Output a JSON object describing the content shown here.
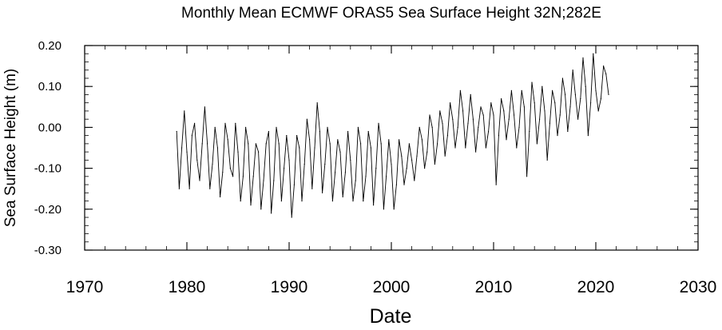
{
  "chart_data": {
    "type": "line",
    "title": "Monthly Mean ECMWF ORAS5   Sea Surface Height 32N;282E",
    "xlabel": "Date",
    "ylabel": "Sea Surface Height (m)",
    "xlim": [
      1970,
      2030
    ],
    "ylim": [
      -0.3,
      0.2
    ],
    "x_ticks": [
      1970,
      1980,
      1990,
      2000,
      2010,
      2020,
      2030
    ],
    "x_tick_labels": [
      "1970",
      "1980",
      "1990",
      "2000",
      "2010",
      "2020",
      "2030"
    ],
    "y_ticks": [
      -0.3,
      -0.2,
      -0.1,
      0.0,
      0.1,
      0.2
    ],
    "y_tick_labels": [
      "-0.30",
      "-0.20",
      "-0.10",
      "0.00",
      "0.10",
      "0.20"
    ],
    "grid": false,
    "line_color": "#000000",
    "series": [
      {
        "x_start": 1979.0,
        "x_step": 0.25,
        "values": [
          -0.01,
          -0.15,
          -0.05,
          0.04,
          -0.06,
          -0.15,
          -0.02,
          0.01,
          -0.08,
          -0.13,
          -0.04,
          0.05,
          -0.04,
          -0.15,
          -0.09,
          0.0,
          -0.05,
          -0.17,
          -0.11,
          0.01,
          -0.03,
          -0.1,
          -0.12,
          0.01,
          -0.06,
          -0.18,
          -0.12,
          0.0,
          -0.04,
          -0.19,
          -0.12,
          -0.04,
          -0.06,
          -0.2,
          -0.13,
          -0.04,
          -0.01,
          -0.21,
          -0.13,
          0.0,
          -0.04,
          -0.18,
          -0.1,
          -0.02,
          -0.08,
          -0.22,
          -0.14,
          -0.02,
          -0.05,
          -0.18,
          -0.09,
          0.02,
          -0.03,
          -0.15,
          -0.05,
          0.06,
          -0.01,
          -0.16,
          -0.09,
          0.0,
          -0.04,
          -0.18,
          -0.11,
          -0.03,
          -0.06,
          -0.17,
          -0.11,
          -0.01,
          -0.08,
          -0.18,
          -0.13,
          0.0,
          -0.04,
          -0.18,
          -0.12,
          -0.01,
          -0.05,
          -0.19,
          -0.1,
          0.01,
          -0.04,
          -0.2,
          -0.12,
          -0.03,
          -0.09,
          -0.2,
          -0.14,
          -0.03,
          -0.07,
          -0.14,
          -0.1,
          -0.04,
          -0.08,
          -0.13,
          -0.07,
          0.0,
          -0.03,
          -0.1,
          -0.06,
          0.03,
          0.0,
          -0.09,
          -0.04,
          0.04,
          0.01,
          -0.07,
          -0.02,
          0.06,
          0.02,
          -0.05,
          0.0,
          0.09,
          0.04,
          -0.05,
          0.01,
          0.08,
          0.02,
          -0.06,
          0.0,
          0.05,
          0.03,
          -0.05,
          -0.01,
          0.06,
          0.03,
          -0.14,
          -0.02,
          0.07,
          0.04,
          -0.03,
          0.02,
          0.09,
          0.03,
          -0.05,
          0.0,
          0.09,
          0.05,
          -0.12,
          -0.01,
          0.11,
          0.06,
          -0.04,
          0.02,
          0.1,
          0.04,
          -0.08,
          0.01,
          0.09,
          0.06,
          -0.02,
          0.03,
          0.12,
          0.08,
          -0.01,
          0.05,
          0.14,
          0.08,
          0.02,
          0.07,
          0.17,
          0.1,
          -0.02,
          0.06,
          0.18,
          0.09,
          0.04,
          0.07,
          0.15,
          0.13,
          0.08
        ]
      }
    ]
  }
}
